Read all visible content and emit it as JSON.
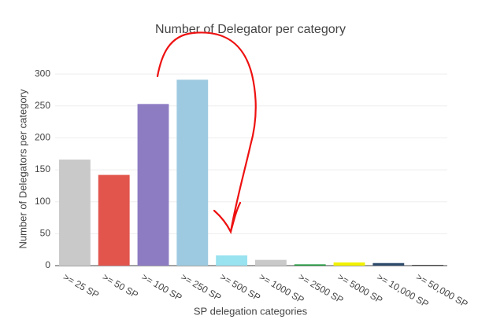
{
  "chart_data": {
    "type": "bar",
    "title": "Number of Delegator per category",
    "x_label": "SP delegation categories",
    "y_label": "Number of Delegators per category",
    "categories": [
      ">= 25 SP",
      ">= 50 SP",
      ">= 100 SP",
      ">= 250 SP",
      ">= 500 SP",
      ">= 1000 SP",
      ">= 2500 SP",
      ">= 5000 SP",
      ">= 10,000 SP",
      ">= 50,000 SP"
    ],
    "values": [
      166,
      142,
      253,
      291,
      16,
      9,
      2,
      5,
      4,
      1
    ],
    "colors": [
      "#c9c9c9",
      "#e2554d",
      "#8e7cc3",
      "#9ecae1",
      "#99e2ef",
      "#c9c9c9",
      "#1e9a3c",
      "#f2f200",
      "#2e4a6b",
      "#222222"
    ],
    "ylim": [
      0,
      310
    ],
    "yticks": [
      0,
      50,
      100,
      150,
      200,
      250,
      300
    ],
    "grid": true
  }
}
